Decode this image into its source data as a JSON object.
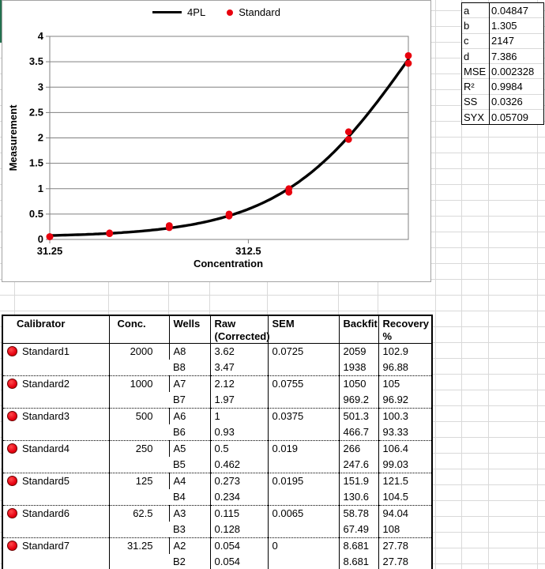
{
  "chart_data": {
    "type": "scatter",
    "title": "",
    "xlabel": "Concentration",
    "ylabel": "Measurement",
    "x_scale": "log",
    "x_range": [
      31.25,
      2000
    ],
    "x_ticks": [
      31.25,
      312.5
    ],
    "y_range": [
      0,
      4
    ],
    "y_ticks": [
      0,
      0.5,
      1,
      1.5,
      2,
      2.5,
      3,
      3.5,
      4
    ],
    "legend": {
      "line_label": "4PL",
      "point_label": "Standard",
      "position": "top"
    },
    "fit_4pl": {
      "a": 0.04847,
      "b": 1.305,
      "c": 2147,
      "d": 7.386
    },
    "points": [
      {
        "x": 31.25,
        "y": 0.054
      },
      {
        "x": 31.25,
        "y": 0.054
      },
      {
        "x": 62.5,
        "y": 0.115
      },
      {
        "x": 62.5,
        "y": 0.128
      },
      {
        "x": 125,
        "y": 0.273
      },
      {
        "x": 125,
        "y": 0.234
      },
      {
        "x": 250,
        "y": 0.5
      },
      {
        "x": 250,
        "y": 0.462
      },
      {
        "x": 500,
        "y": 1
      },
      {
        "x": 500,
        "y": 0.93
      },
      {
        "x": 1000,
        "y": 2.12
      },
      {
        "x": 1000,
        "y": 1.97
      },
      {
        "x": 2000,
        "y": 3.62
      },
      {
        "x": 2000,
        "y": 3.47
      }
    ],
    "colors": {
      "curve": "#000000",
      "point": "#e8000d",
      "plot_grid": "#808080"
    }
  },
  "stats": [
    {
      "label": "a",
      "value": "0.04847"
    },
    {
      "label": "b",
      "value": "1.305"
    },
    {
      "label": "c",
      "value": "2147"
    },
    {
      "label": "d",
      "value": "7.386"
    },
    {
      "label": "MSE",
      "value": "0.002328"
    },
    {
      "label": "R²",
      "value": "0.9984"
    },
    {
      "label": "SS",
      "value": "0.0326"
    },
    {
      "label": "SYX",
      "value": "0.05709"
    }
  ],
  "calibrator_table": {
    "headers": {
      "calibrator": "Calibrator",
      "conc": "Conc.",
      "wells": "Wells",
      "raw": "Raw\n(Corrected)",
      "sem": "SEM",
      "backfit": "Backfit",
      "recovery": "Recovery\n%"
    },
    "groups": [
      {
        "name": "Standard1",
        "conc": "2000",
        "sem": "0.0725",
        "wells": [
          {
            "well": "A8",
            "raw": "3.62",
            "backfit": "2059",
            "recovery": "102.9"
          },
          {
            "well": "B8",
            "raw": "3.47",
            "backfit": "1938",
            "recovery": "96.88"
          }
        ]
      },
      {
        "name": "Standard2",
        "conc": "1000",
        "sem": "0.0755",
        "wells": [
          {
            "well": "A7",
            "raw": "2.12",
            "backfit": "1050",
            "recovery": "105"
          },
          {
            "well": "B7",
            "raw": "1.97",
            "backfit": "969.2",
            "recovery": "96.92"
          }
        ]
      },
      {
        "name": "Standard3",
        "conc": "500",
        "sem": "0.0375",
        "wells": [
          {
            "well": "A6",
            "raw": "1",
            "backfit": "501.3",
            "recovery": "100.3"
          },
          {
            "well": "B6",
            "raw": "0.93",
            "backfit": "466.7",
            "recovery": "93.33"
          }
        ]
      },
      {
        "name": "Standard4",
        "conc": "250",
        "sem": "0.019",
        "wells": [
          {
            "well": "A5",
            "raw": "0.5",
            "backfit": "266",
            "recovery": "106.4"
          },
          {
            "well": "B5",
            "raw": "0.462",
            "backfit": "247.6",
            "recovery": "99.03"
          }
        ]
      },
      {
        "name": "Standard5",
        "conc": "125",
        "sem": "0.0195",
        "wells": [
          {
            "well": "A4",
            "raw": "0.273",
            "backfit": "151.9",
            "recovery": "121.5"
          },
          {
            "well": "B4",
            "raw": "0.234",
            "backfit": "130.6",
            "recovery": "104.5"
          }
        ]
      },
      {
        "name": "Standard6",
        "conc": "62.5",
        "sem": "0.0065",
        "wells": [
          {
            "well": "A3",
            "raw": "0.115",
            "backfit": "58.78",
            "recovery": "94.04"
          },
          {
            "well": "B3",
            "raw": "0.128",
            "backfit": "67.49",
            "recovery": "108"
          }
        ]
      },
      {
        "name": "Standard7",
        "conc": "31.25",
        "sem": "0",
        "wells": [
          {
            "well": "A2",
            "raw": "0.054",
            "backfit": "8.681",
            "recovery": "27.78"
          },
          {
            "well": "B2",
            "raw": "0.054",
            "backfit": "8.681",
            "recovery": "27.78"
          }
        ]
      }
    ]
  }
}
